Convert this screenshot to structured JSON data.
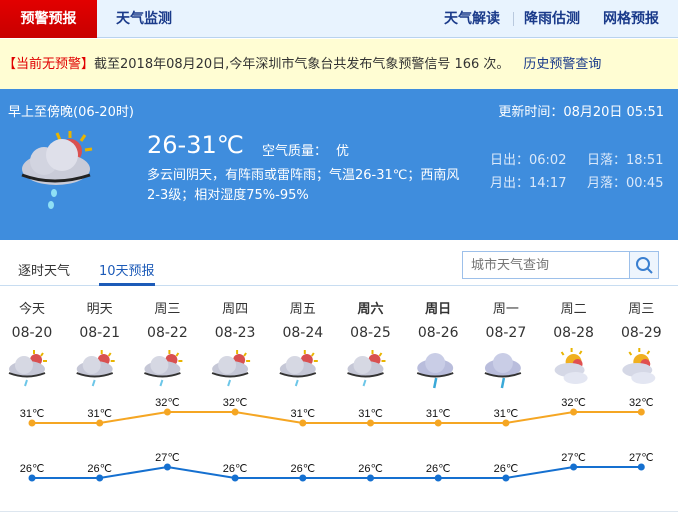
{
  "nav": {
    "active": "预警预报",
    "monitor": "天气监测",
    "right": [
      "天气解读",
      "降雨估测",
      "网格预报"
    ]
  },
  "alert": {
    "status": "【当前无预警】",
    "text": "截至2018年08月20日,今年深圳市气象台共发布气象预警信号 166 次。",
    "link": "历史预警查询"
  },
  "current": {
    "period": "早上至傍晚(06-20时)",
    "updated": "更新时间：08月20日 05:51",
    "temp": "26-31℃",
    "air_label": "空气质量：",
    "air_value": "优",
    "desc1": "多云间阴天，有阵雨或雷阵雨；气温26-31℃；西南风",
    "desc2": "2-3级；相对湿度75%-95%",
    "sunrise": "日出：06:02",
    "sunset": "日落：18:51",
    "moonrise": "月出：14:17",
    "moonset": "月落：00:45",
    "icon": "cloudy-sun-rain-icon"
  },
  "tabs": [
    "逐时天气",
    "10天预报"
  ],
  "search": {
    "placeholder": "城市天气查询",
    "icon": "search-icon"
  },
  "colors": {
    "high": "#f5a623",
    "low": "#1570d0",
    "panel": "#3f8ddd",
    "accent": "#d40000"
  },
  "forecast": [
    {
      "day": "今天",
      "date": "08-20",
      "icon": "cloud-sun-rain",
      "high": 31,
      "low": 26
    },
    {
      "day": "明天",
      "date": "08-21",
      "icon": "cloud-sun-rain",
      "high": 31,
      "low": 26
    },
    {
      "day": "周三",
      "date": "08-22",
      "icon": "cloud-sun-rain",
      "high": 32,
      "low": 27
    },
    {
      "day": "周四",
      "date": "08-23",
      "icon": "cloud-sun-rain",
      "high": 32,
      "low": 26
    },
    {
      "day": "周五",
      "date": "08-24",
      "icon": "cloud-sun-rain",
      "high": 31,
      "low": 26
    },
    {
      "day": "周六",
      "date": "08-25",
      "icon": "cloud-sun-rain",
      "high": 31,
      "low": 26
    },
    {
      "day": "周日",
      "date": "08-26",
      "icon": "cloud-rain",
      "high": 31,
      "low": 26
    },
    {
      "day": "周一",
      "date": "08-27",
      "icon": "cloud-rain",
      "high": 31,
      "low": 26
    },
    {
      "day": "周二",
      "date": "08-28",
      "icon": "sun-clouds",
      "high": 32,
      "low": 27
    },
    {
      "day": "周三",
      "date": "08-29",
      "icon": "sun-clouds",
      "high": 32,
      "low": 27
    }
  ],
  "unit": "℃"
}
